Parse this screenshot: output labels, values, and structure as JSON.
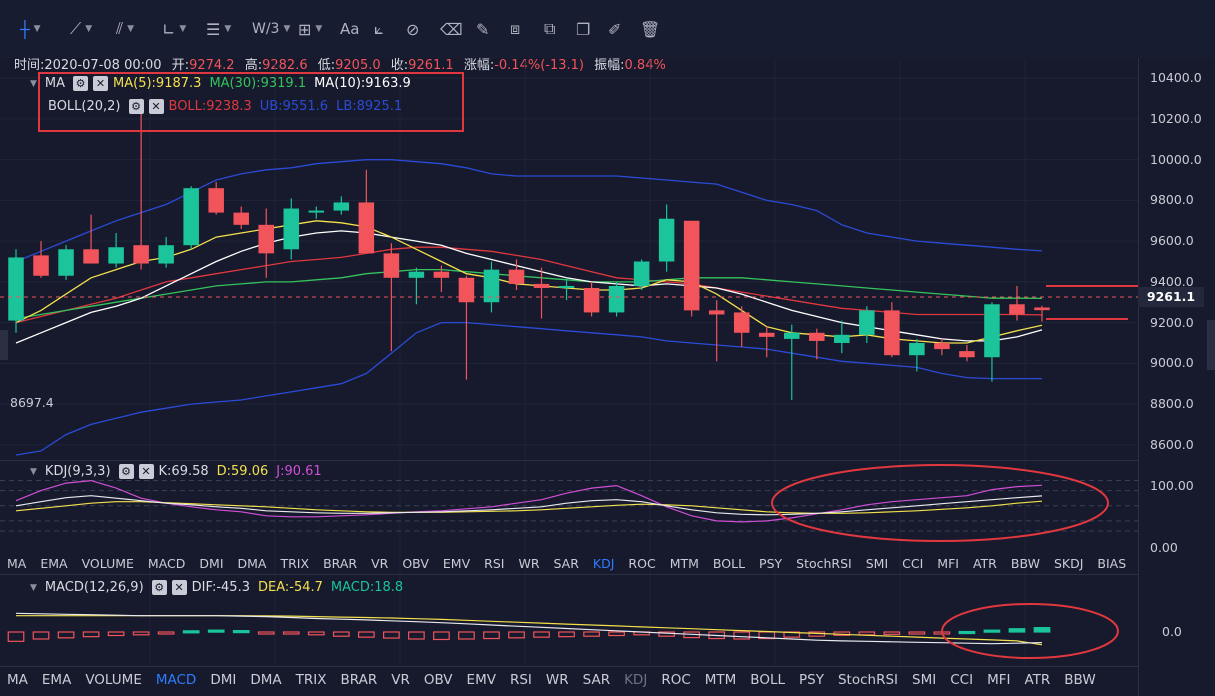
{
  "toolbar": {
    "tools": [
      {
        "icon": "crosshair-icon",
        "active": true
      },
      {
        "icon": "trend-line-icon"
      },
      {
        "icon": "multi-line-icon"
      },
      {
        "icon": "angle-icon"
      },
      {
        "icon": "parallel-lines-icon"
      },
      {
        "icon": "fibonacci-icon",
        "glyph": "W/3"
      },
      {
        "icon": "rectangle-icon"
      },
      {
        "icon": "text-icon",
        "glyph": "Aa"
      },
      {
        "icon": "ruler-measure-icon"
      },
      {
        "icon": "magnet-icon"
      },
      {
        "icon": "eraser-icon"
      },
      {
        "icon": "pen-icon"
      },
      {
        "icon": "settings-sliders-icon"
      },
      {
        "icon": "copy-icon"
      },
      {
        "icon": "edit-icon"
      },
      {
        "icon": "trash-icon"
      }
    ]
  },
  "ohlc": {
    "time_label": "时间:",
    "time": "2020-07-08 00:00",
    "open_label": "开:",
    "open": "9274.2",
    "high_label": "高:",
    "high": "9282.6",
    "low_label": "低:",
    "low": "9205.0",
    "close_label": "收:",
    "close": "9261.1",
    "change_label": "涨幅:",
    "change": "-0.14%(-13.1)",
    "amplitude_label": "振幅:",
    "amplitude": "0.84%"
  },
  "ma_legend": {
    "name": "MA",
    "ma5": "MA(5):9187.3",
    "ma30": "MA(30):9319.1",
    "ma10": "MA(10):9163.9"
  },
  "boll_legend": {
    "name": "BOLL(20,2)",
    "boll": "BOLL:9238.3",
    "ub": "UB:9551.6",
    "lb": "LB:8925.1"
  },
  "price_axis": {
    "labels": [
      "10400.0",
      "10200.0",
      "10000.0",
      "9800.0",
      "9600.0",
      "9400.0",
      "9200.0",
      "9000.0",
      "8800.0",
      "8600.0"
    ],
    "current": "9261.1",
    "min_marker": "8697.4"
  },
  "kdj_legend": {
    "name": "KDJ(9,3,3)",
    "k": "K:69.58",
    "d": "D:59.06",
    "j": "J:90.61"
  },
  "kdj_axis": {
    "labels": [
      "100.00",
      "0.00"
    ]
  },
  "indicator_tabs_1": [
    "MA",
    "EMA",
    "VOLUME",
    "MACD",
    "DMI",
    "DMA",
    "TRIX",
    "BRAR",
    "VR",
    "OBV",
    "EMV",
    "RSI",
    "WR",
    "SAR",
    "KDJ",
    "ROC",
    "MTM",
    "BOLL",
    "PSY",
    "StochRSI",
    "SMI",
    "CCI",
    "MFI",
    "ATR",
    "BBW",
    "SKDJ",
    "BIAS"
  ],
  "indicator_tabs_1_active": "KDJ",
  "macd_legend": {
    "name": "MACD(12,26,9)",
    "dif": "DIF:-45.3",
    "dea": "DEA:-54.7",
    "macd": "MACD:18.8"
  },
  "macd_axis": {
    "labels": [
      "0.0"
    ]
  },
  "indicator_tabs_2": [
    "MA",
    "EMA",
    "VOLUME",
    "MACD",
    "DMI",
    "DMA",
    "TRIX",
    "BRAR",
    "VR",
    "OBV",
    "EMV",
    "RSI",
    "WR",
    "SAR",
    "KDJ",
    "ROC",
    "MTM",
    "BOLL",
    "PSY",
    "StochRSI",
    "SMI",
    "CCI",
    "MFI",
    "ATR",
    "BBW"
  ],
  "indicator_tabs_2_active": "MACD",
  "colors": {
    "up": "#1bc49a",
    "down": "#f2545b",
    "ma5": "#f4e04d",
    "ma10": "#ffffff",
    "ma30": "#35c35b",
    "boll": "#e0383e",
    "band": "#2b4bd6",
    "accent": "#2f7cff"
  },
  "chart_data": {
    "type": "candlestick",
    "candles": [
      {
        "o": 9210,
        "h": 9560,
        "l": 9150,
        "c": 9520
      },
      {
        "o": 9530,
        "h": 9600,
        "l": 9420,
        "c": 9430
      },
      {
        "o": 9430,
        "h": 9580,
        "l": 9410,
        "c": 9560
      },
      {
        "o": 9560,
        "h": 9730,
        "l": 9490,
        "c": 9490
      },
      {
        "o": 9490,
        "h": 9640,
        "l": 9470,
        "c": 9570
      },
      {
        "o": 9580,
        "h": 10300,
        "l": 9460,
        "c": 9490
      },
      {
        "o": 9490,
        "h": 9620,
        "l": 9470,
        "c": 9580
      },
      {
        "o": 9580,
        "h": 9870,
        "l": 9560,
        "c": 9860
      },
      {
        "o": 9860,
        "h": 9890,
        "l": 9730,
        "c": 9740
      },
      {
        "o": 9740,
        "h": 9770,
        "l": 9660,
        "c": 9680
      },
      {
        "o": 9680,
        "h": 9760,
        "l": 9420,
        "c": 9540
      },
      {
        "o": 9560,
        "h": 9810,
        "l": 9510,
        "c": 9760
      },
      {
        "o": 9740,
        "h": 9770,
        "l": 9710,
        "c": 9750
      },
      {
        "o": 9750,
        "h": 9820,
        "l": 9730,
        "c": 9790
      },
      {
        "o": 9790,
        "h": 9950,
        "l": 9540,
        "c": 9540
      },
      {
        "o": 9540,
        "h": 9590,
        "l": 9060,
        "c": 9420
      },
      {
        "o": 9420,
        "h": 9470,
        "l": 9290,
        "c": 9450
      },
      {
        "o": 9450,
        "h": 9480,
        "l": 9350,
        "c": 9420
      },
      {
        "o": 9420,
        "h": 9430,
        "l": 8920,
        "c": 9300
      },
      {
        "o": 9300,
        "h": 9500,
        "l": 9250,
        "c": 9460
      },
      {
        "o": 9460,
        "h": 9510,
        "l": 9360,
        "c": 9390
      },
      {
        "o": 9390,
        "h": 9470,
        "l": 9220,
        "c": 9370
      },
      {
        "o": 9380,
        "h": 9420,
        "l": 9310,
        "c": 9380
      },
      {
        "o": 9370,
        "h": 9400,
        "l": 9230,
        "c": 9250
      },
      {
        "o": 9250,
        "h": 9400,
        "l": 9230,
        "c": 9380
      },
      {
        "o": 9380,
        "h": 9510,
        "l": 9360,
        "c": 9500
      },
      {
        "o": 9500,
        "h": 9780,
        "l": 9450,
        "c": 9710
      },
      {
        "o": 9700,
        "h": 9700,
        "l": 9230,
        "c": 9260
      },
      {
        "o": 9260,
        "h": 9310,
        "l": 9010,
        "c": 9240
      },
      {
        "o": 9250,
        "h": 9280,
        "l": 9080,
        "c": 9150
      },
      {
        "o": 9150,
        "h": 9180,
        "l": 9030,
        "c": 9130
      },
      {
        "o": 9120,
        "h": 9190,
        "l": 8820,
        "c": 9150
      },
      {
        "o": 9150,
        "h": 9170,
        "l": 9020,
        "c": 9110
      },
      {
        "o": 9100,
        "h": 9210,
        "l": 9050,
        "c": 9140
      },
      {
        "o": 9140,
        "h": 9280,
        "l": 9100,
        "c": 9260
      },
      {
        "o": 9260,
        "h": 9300,
        "l": 9030,
        "c": 9040
      },
      {
        "o": 9040,
        "h": 9120,
        "l": 8960,
        "c": 9100
      },
      {
        "o": 9100,
        "h": 9120,
        "l": 9040,
        "c": 9070
      },
      {
        "o": 9060,
        "h": 9090,
        "l": 9010,
        "c": 9030
      },
      {
        "o": 9030,
        "h": 9300,
        "l": 8910,
        "c": 9290
      },
      {
        "o": 9290,
        "h": 9380,
        "l": 9210,
        "c": 9240
      },
      {
        "o": 9274.2,
        "h": 9282.6,
        "l": 9205.0,
        "c": 9261.1
      }
    ],
    "ma5": [
      9200,
      9260,
      9340,
      9420,
      9460,
      9500,
      9520,
      9560,
      9620,
      9640,
      9660,
      9680,
      9700,
      9690,
      9670,
      9620,
      9560,
      9500,
      9440,
      9420,
      9390,
      9380,
      9370,
      9360,
      9360,
      9370,
      9410,
      9400,
      9340,
      9260,
      9180,
      9150,
      9140,
      9130,
      9140,
      9120,
      9110,
      9100,
      9100,
      9130,
      9160,
      9187
    ],
    "ma10": [
      9100,
      9150,
      9200,
      9250,
      9280,
      9320,
      9380,
      9440,
      9500,
      9550,
      9590,
      9620,
      9640,
      9650,
      9640,
      9620,
      9600,
      9580,
      9540,
      9510,
      9480,
      9450,
      9420,
      9400,
      9390,
      9380,
      9390,
      9380,
      9370,
      9340,
      9300,
      9260,
      9230,
      9200,
      9180,
      9160,
      9140,
      9120,
      9110,
      9110,
      9130,
      9164
    ],
    "ma30": [
      9220,
      9240,
      9260,
      9280,
      9300,
      9320,
      9340,
      9360,
      9380,
      9390,
      9400,
      9400,
      9410,
      9420,
      9440,
      9450,
      9460,
      9460,
      9450,
      9440,
      9430,
      9420,
      9410,
      9400,
      9400,
      9400,
      9410,
      9420,
      9420,
      9420,
      9410,
      9400,
      9390,
      9380,
      9370,
      9360,
      9350,
      9340,
      9330,
      9320,
      9320,
      9319
    ],
    "boll_mid": [
      9200,
      9230,
      9260,
      9290,
      9320,
      9360,
      9400,
      9420,
      9440,
      9460,
      9480,
      9500,
      9510,
      9520,
      9540,
      9560,
      9570,
      9570,
      9560,
      9550,
      9530,
      9510,
      9480,
      9450,
      9420,
      9410,
      9400,
      9390,
      9370,
      9350,
      9330,
      9310,
      9290,
      9270,
      9260,
      9250,
      9240,
      9240,
      9240,
      9240,
      9240,
      9238
    ],
    "boll_ub": [
      9500,
      9550,
      9600,
      9650,
      9700,
      9740,
      9780,
      9840,
      9900,
      9930,
      9950,
      9960,
      9980,
      9990,
      10000,
      10000,
      9990,
      9980,
      9960,
      9930,
      9920,
      9920,
      9920,
      9920,
      9920,
      9910,
      9900,
      9890,
      9880,
      9840,
      9800,
      9780,
      9750,
      9680,
      9640,
      9620,
      9600,
      9590,
      9580,
      9570,
      9560,
      9552
    ],
    "boll_lb": [
      8550,
      8570,
      8650,
      8700,
      8730,
      8760,
      8780,
      8800,
      8810,
      8820,
      8840,
      8860,
      8880,
      8900,
      8950,
      9050,
      9150,
      9200,
      9200,
      9190,
      9180,
      9170,
      9160,
      9150,
      9140,
      9130,
      9110,
      9100,
      9090,
      9080,
      9070,
      9050,
      9030,
      9010,
      9000,
      8990,
      8980,
      8950,
      8930,
      8925,
      8925,
      8925
    ],
    "kdj_k": [
      50,
      58,
      66,
      70,
      65,
      60,
      55,
      52,
      48,
      45,
      40,
      38,
      36,
      35,
      35,
      36,
      37,
      38,
      40,
      42,
      45,
      48,
      55,
      60,
      62,
      58,
      50,
      42,
      36,
      33,
      32,
      33,
      35,
      38,
      42,
      46,
      50,
      54,
      58,
      62,
      66,
      69.58
    ],
    "kdj_d": [
      40,
      45,
      50,
      55,
      58,
      58,
      56,
      54,
      52,
      50,
      48,
      45,
      42,
      40,
      38,
      37,
      37,
      37,
      38,
      39,
      40,
      42,
      45,
      48,
      51,
      53,
      52,
      50,
      46,
      42,
      38,
      36,
      35,
      35,
      36,
      38,
      40,
      43,
      46,
      50,
      55,
      59.06
    ],
    "kdj_j": [
      60,
      80,
      95,
      100,
      85,
      65,
      55,
      48,
      42,
      38,
      30,
      28,
      28,
      30,
      32,
      35,
      38,
      40,
      44,
      48,
      55,
      62,
      75,
      85,
      90,
      70,
      48,
      30,
      20,
      18,
      20,
      26,
      34,
      42,
      52,
      58,
      62,
      66,
      70,
      82,
      88,
      90.61
    ],
    "macd_dif": [
      80,
      78,
      76,
      74,
      72,
      70,
      70,
      70,
      70,
      68,
      66,
      62,
      58,
      55,
      52,
      48,
      44,
      40,
      35,
      30,
      25,
      20,
      15,
      10,
      5,
      0,
      -5,
      -10,
      -15,
      -20,
      -25,
      -30,
      -35,
      -38,
      -40,
      -42,
      -44,
      -46,
      -48,
      -50,
      -48,
      -45.3
    ],
    "macd_dea": [
      70,
      70,
      70,
      70,
      70,
      70,
      70,
      70,
      70,
      70,
      69,
      68,
      66,
      64,
      62,
      60,
      57,
      54,
      50,
      46,
      42,
      38,
      34,
      30,
      26,
      22,
      18,
      14,
      10,
      6,
      2,
      -2,
      -6,
      -10,
      -14,
      -18,
      -22,
      -26,
      -30,
      -34,
      -38,
      -54.7
    ],
    "macd_hist": [
      -40,
      -30,
      -25,
      -20,
      -15,
      -12,
      -8,
      5,
      8,
      6,
      -5,
      -8,
      -12,
      -18,
      -22,
      -26,
      -30,
      -32,
      -30,
      -28,
      -25,
      -22,
      -20,
      -18,
      -15,
      -12,
      -18,
      -24,
      -28,
      -30,
      -28,
      -22,
      -18,
      -14,
      -12,
      -10,
      -8,
      -4,
      2,
      8,
      14,
      18.8
    ],
    "y_range": [
      8550,
      10450
    ],
    "kdj_range": [
      -10,
      115
    ],
    "macd_range": [
      -120,
      120
    ]
  }
}
